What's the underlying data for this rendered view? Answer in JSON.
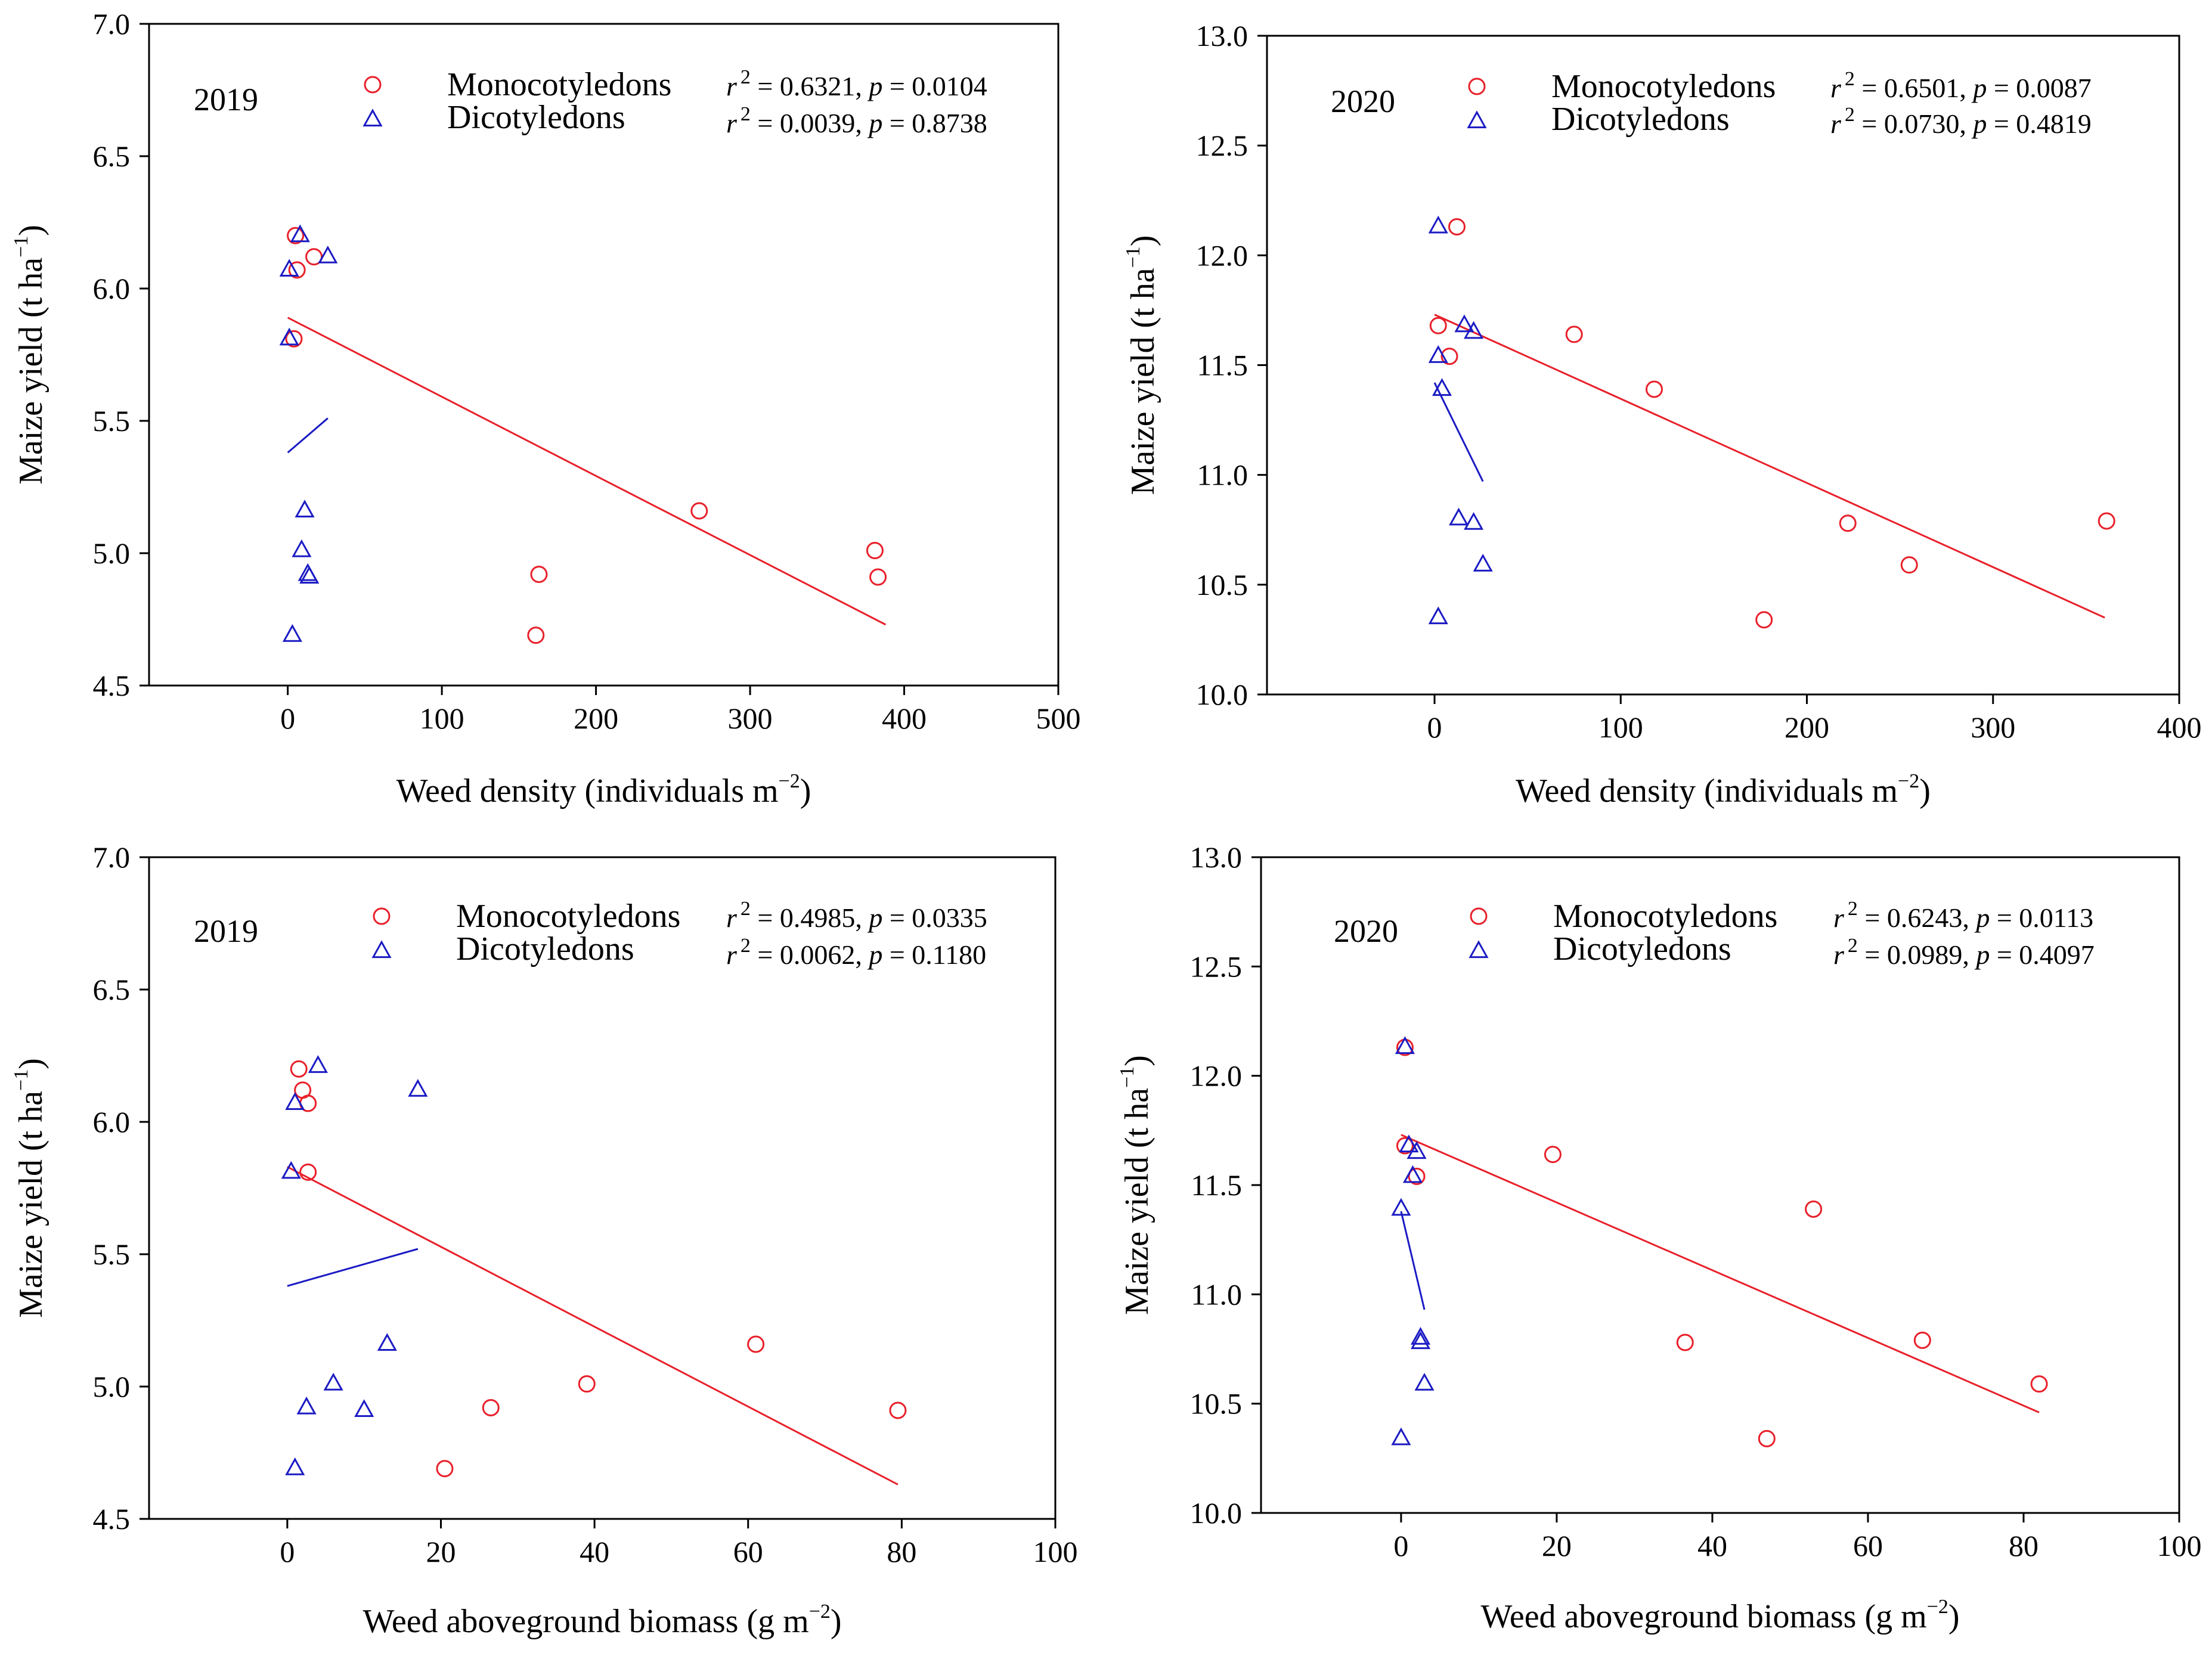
{
  "colors": {
    "mono": "#e8202a",
    "dico": "#1b1bc4"
  },
  "legend": {
    "mono": "Monocotyledons",
    "dico": "Dicotyledons"
  },
  "stat_labels": {
    "r": "r",
    "r_sup": "2",
    "p": "p",
    "eq": " = ",
    "sep": ", "
  },
  "chart_data": [
    {
      "type": "scatter",
      "year": "2019",
      "xlabel": "Weed density (individuals m",
      "xlabel_sup": "−2",
      "xlabel_end": ")",
      "ylabel": "Maize yield (t ha",
      "ylabel_sup": "−1",
      "ylabel_end": ")",
      "xlim": [
        -90,
        500
      ],
      "ylim": [
        4.5,
        7.0
      ],
      "xticks": [
        0,
        100,
        200,
        300,
        400,
        500
      ],
      "xtick_labels": [
        "0",
        "100",
        "200",
        "300",
        "400",
        "500"
      ],
      "yticks": [
        4.5,
        5.0,
        5.5,
        6.0,
        6.5,
        7.0
      ],
      "ytick_labels": [
        "4.5",
        "5.0",
        "5.5",
        "6.0",
        "6.5",
        "7.0"
      ],
      "series": [
        {
          "name": "Monocotyledons",
          "r2": "0.6321",
          "p": "0.0104",
          "points": [
            [
              5,
              6.2
            ],
            [
              17,
              6.12
            ],
            [
              6,
              6.07
            ],
            [
              4,
              5.81
            ],
            [
              267,
              5.16
            ],
            [
              381,
              5.01
            ],
            [
              383,
              4.91
            ],
            [
              163,
              4.92
            ],
            [
              161,
              4.69
            ]
          ],
          "fit": [
            [
              0,
              5.89
            ],
            [
              388,
              4.73
            ]
          ]
        },
        {
          "name": "Dicotyledons",
          "r2": "0.0039",
          "p": "0.8738",
          "points": [
            [
              8,
              6.2
            ],
            [
              26,
              6.12
            ],
            [
              1,
              6.07
            ],
            [
              1,
              5.81
            ],
            [
              11,
              5.16
            ],
            [
              9,
              5.01
            ],
            [
              13,
              4.92
            ],
            [
              14,
              4.91
            ],
            [
              3,
              4.69
            ]
          ],
          "fit": [
            [
              0,
              5.38
            ],
            [
              26,
              5.51
            ]
          ]
        }
      ]
    },
    {
      "type": "scatter",
      "year": "2020",
      "xlabel": "Weed density (individuals m",
      "xlabel_sup": "−2",
      "xlabel_end": ")",
      "ylabel": "Maize yield (t ha",
      "ylabel_sup": "−1",
      "ylabel_end": ")",
      "xlim": [
        -90,
        400
      ],
      "ylim": [
        10.0,
        13.0
      ],
      "xticks": [
        0,
        100,
        200,
        300,
        400
      ],
      "xtick_labels": [
        "0",
        "100",
        "200",
        "300",
        "400"
      ],
      "yticks": [
        10.0,
        10.5,
        11.0,
        11.5,
        12.0,
        12.5,
        13.0
      ],
      "ytick_labels": [
        "10.0",
        "10.5",
        "11.0",
        "11.5",
        "12.0",
        "12.5",
        "13.0"
      ],
      "series": [
        {
          "name": "Monocotyledons",
          "r2": "0.6501",
          "p": "0.0087",
          "points": [
            [
              12,
              12.13
            ],
            [
              2,
              11.68
            ],
            [
              8,
              11.54
            ],
            [
              75,
              11.64
            ],
            [
              118,
              11.39
            ],
            [
              222,
              10.78
            ],
            [
              255,
              10.59
            ],
            [
              361,
              10.79
            ],
            [
              177,
              10.34
            ]
          ],
          "fit": [
            [
              0,
              11.73
            ],
            [
              360,
              10.35
            ]
          ]
        },
        {
          "name": "Dicotyledons",
          "r2": "0.0730",
          "p": "0.4819",
          "points": [
            [
              2,
              12.13
            ],
            [
              16,
              11.68
            ],
            [
              21,
              11.65
            ],
            [
              2,
              11.54
            ],
            [
              4,
              11.39
            ],
            [
              13,
              10.8
            ],
            [
              21,
              10.78
            ],
            [
              26,
              10.59
            ],
            [
              2,
              10.35
            ]
          ],
          "fit": [
            [
              0,
              11.42
            ],
            [
              26,
              10.97
            ]
          ]
        }
      ]
    },
    {
      "type": "scatter",
      "year": "2019",
      "xlabel": "Weed aboveground biomass (g m",
      "xlabel_sup": "−2",
      "xlabel_end": ")",
      "ylabel": "Maize yield (t ha",
      "ylabel_sup": "−1",
      "ylabel_end": ")",
      "xlim": [
        -18,
        100
      ],
      "ylim": [
        4.5,
        7.0
      ],
      "xticks": [
        0,
        20,
        40,
        60,
        80,
        100
      ],
      "xtick_labels": [
        "0",
        "20",
        "40",
        "60",
        "80",
        "100"
      ],
      "yticks": [
        4.5,
        5.0,
        5.5,
        6.0,
        6.5,
        7.0
      ],
      "ytick_labels": [
        "4.5",
        "5.0",
        "5.5",
        "6.0",
        "6.5",
        "7.0"
      ],
      "series": [
        {
          "name": "Monocotyledons",
          "r2": "0.4985",
          "p": "0.0335",
          "points": [
            [
              1.5,
              6.2
            ],
            [
              2,
              6.12
            ],
            [
              2.7,
              6.07
            ],
            [
              2.7,
              5.81
            ],
            [
              61,
              5.16
            ],
            [
              39,
              5.01
            ],
            [
              79.5,
              4.91
            ],
            [
              26.5,
              4.92
            ],
            [
              20.5,
              4.69
            ]
          ],
          "fit": [
            [
              0,
              5.83
            ],
            [
              79.5,
              4.63
            ]
          ]
        },
        {
          "name": "Dicotyledons",
          "r2": "0.0062",
          "p": "0.1180",
          "points": [
            [
              4,
              6.21
            ],
            [
              17,
              6.12
            ],
            [
              1,
              6.07
            ],
            [
              0.5,
              5.81
            ],
            [
              13,
              5.16
            ],
            [
              6,
              5.01
            ],
            [
              2.5,
              4.92
            ],
            [
              10,
              4.91
            ],
            [
              1,
              4.69
            ]
          ],
          "fit": [
            [
              0,
              5.38
            ],
            [
              17,
              5.52
            ]
          ]
        }
      ]
    },
    {
      "type": "scatter",
      "year": "2020",
      "xlabel": "Weed aboveground biomass (g m",
      "xlabel_sup": "−2",
      "xlabel_end": ")",
      "ylabel": "Maize yield (t ha",
      "ylabel_sup": "−1",
      "ylabel_end": ")",
      "xlim": [
        -18,
        100
      ],
      "ylim": [
        10.0,
        13.0
      ],
      "xticks": [
        0,
        20,
        40,
        60,
        80,
        100
      ],
      "xtick_labels": [
        "0",
        "20",
        "40",
        "60",
        "80",
        "100"
      ],
      "yticks": [
        10.0,
        10.5,
        11.0,
        11.5,
        12.0,
        12.5,
        13.0
      ],
      "ytick_labels": [
        "10.0",
        "10.5",
        "11.0",
        "11.5",
        "12.0",
        "12.5",
        "13.0"
      ],
      "series": [
        {
          "name": "Monocotyledons",
          "r2": "0.6243",
          "p": "0.0113",
          "points": [
            [
              0.5,
              12.13
            ],
            [
              0.5,
              11.68
            ],
            [
              2,
              11.54
            ],
            [
              19.5,
              11.64
            ],
            [
              53,
              11.39
            ],
            [
              36.5,
              10.78
            ],
            [
              67,
              10.79
            ],
            [
              82,
              10.59
            ],
            [
              47,
              10.34
            ]
          ],
          "fit": [
            [
              0,
              11.73
            ],
            [
              82,
              10.46
            ]
          ]
        },
        {
          "name": "Dicotyledons",
          "r2": "0.0989",
          "p": "0.4097",
          "points": [
            [
              0.5,
              12.13
            ],
            [
              1,
              11.68
            ],
            [
              2,
              11.65
            ],
            [
              1.5,
              11.54
            ],
            [
              0,
              11.39
            ],
            [
              2.5,
              10.8
            ],
            [
              2.5,
              10.78
            ],
            [
              3,
              10.59
            ],
            [
              0,
              10.34
            ]
          ],
          "fit": [
            [
              0,
              11.38
            ],
            [
              3,
              10.93
            ]
          ]
        }
      ]
    }
  ]
}
